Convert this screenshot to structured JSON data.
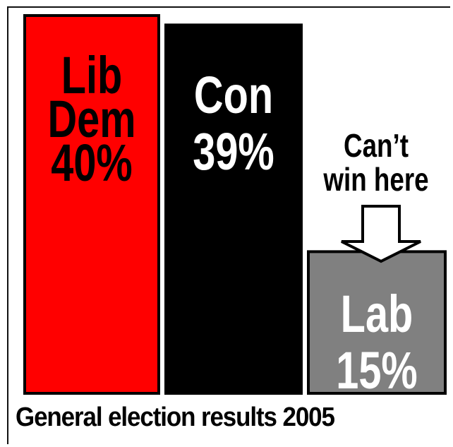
{
  "chart_data": {
    "type": "bar",
    "title": "General election results 2005",
    "categories": [
      "Lib Dem",
      "Con",
      "Lab"
    ],
    "values": [
      40,
      39,
      15
    ],
    "bar_labels": [
      [
        "Lib",
        "Dem",
        "40%"
      ],
      [
        "Con",
        "39%"
      ],
      [
        "Lab",
        "15%"
      ]
    ],
    "annotation": [
      "Can’t",
      "win here"
    ],
    "ylim": [
      0,
      40
    ],
    "grid": false,
    "legend": "none",
    "colors": [
      "#ff0000",
      "#000000",
      "#808080"
    ],
    "label_colors": [
      "#000000",
      "#ffffff",
      "#ffffff"
    ]
  }
}
